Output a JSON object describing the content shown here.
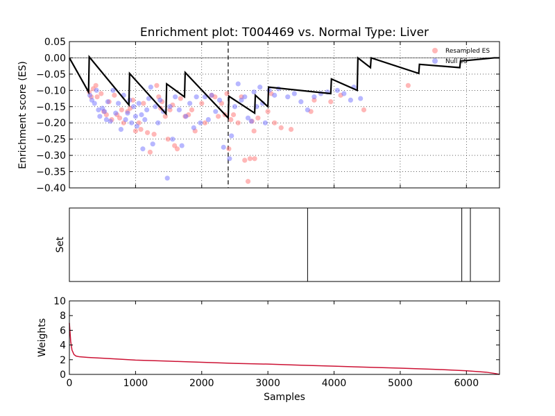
{
  "chart_data": [
    {
      "type": "line",
      "title": "Enrichment plot: T004469 vs. Normal Type: Liver",
      "ylabel": "Enrichment score (ES)",
      "xlabel": "",
      "xlim": [
        0,
        6500
      ],
      "ylim": [
        -0.4,
        0.05
      ],
      "xticks": [
        0,
        1000,
        2000,
        3000,
        4000,
        5000,
        6000
      ],
      "yticks": [
        "0.05",
        "0.00",
        "−0.05",
        "−0.10",
        "−0.15",
        "−0.20",
        "−0.25",
        "−0.30",
        "−0.35",
        "−0.40"
      ],
      "ytick_values": [
        0.05,
        0.0,
        -0.05,
        -0.1,
        -0.15,
        -0.2,
        -0.25,
        -0.3,
        -0.35,
        -0.4
      ],
      "grid": true,
      "legend_position": "top-right",
      "leading_edge_x": 2400,
      "running_es": {
        "color": "#000000",
        "x": [
          0,
          290,
          300,
          900,
          910,
          1460,
          1470,
          1740,
          1750,
          2400,
          2410,
          2800,
          2810,
          3000,
          3010,
          3950,
          3960,
          4350,
          4360,
          4550,
          4560,
          5280,
          5290,
          5900,
          5910,
          6420,
          6500
        ],
        "y": [
          0.0,
          -0.105,
          0.003,
          -0.145,
          -0.048,
          -0.172,
          -0.08,
          -0.12,
          -0.045,
          -0.185,
          -0.118,
          -0.17,
          -0.115,
          -0.15,
          -0.09,
          -0.11,
          -0.065,
          -0.1,
          0.0,
          -0.03,
          0.0,
          -0.048,
          -0.02,
          -0.03,
          -0.01,
          0.0,
          0.0
        ]
      },
      "series": [
        {
          "name": "Resampled ES",
          "color": "#ff7070",
          "x": [
            300,
            330,
            360,
            400,
            420,
            480,
            520,
            560,
            600,
            640,
            680,
            720,
            760,
            790,
            820,
            880,
            920,
            960,
            1000,
            1050,
            1080,
            1120,
            1180,
            1220,
            1280,
            1320,
            1350,
            1380,
            1400,
            1450,
            1490,
            1520,
            1560,
            1590,
            1630,
            1680,
            1750,
            1800,
            1850,
            1900,
            2000,
            2050,
            2150,
            2200,
            2250,
            2300,
            2350,
            2380,
            2410,
            2440,
            2480,
            2550,
            2600,
            2650,
            2700,
            2730,
            2760,
            2790,
            2800,
            2850,
            3000,
            3050,
            3100,
            3200,
            3350,
            3650,
            3700,
            3950,
            4100,
            4450,
            5120
          ],
          "y": [
            -0.105,
            -0.12,
            -0.095,
            -0.085,
            -0.12,
            -0.11,
            -0.165,
            -0.175,
            -0.135,
            -0.19,
            -0.115,
            -0.175,
            -0.185,
            -0.16,
            -0.2,
            -0.165,
            -0.155,
            -0.13,
            -0.225,
            -0.2,
            -0.22,
            -0.14,
            -0.23,
            -0.29,
            -0.235,
            -0.085,
            -0.12,
            -0.155,
            -0.135,
            -0.18,
            -0.25,
            -0.16,
            -0.145,
            -0.27,
            -0.28,
            -0.125,
            -0.18,
            -0.175,
            -0.16,
            -0.225,
            -0.14,
            -0.2,
            -0.115,
            -0.12,
            -0.18,
            -0.14,
            -0.175,
            -0.11,
            -0.28,
            -0.19,
            -0.175,
            -0.2,
            -0.12,
            -0.315,
            -0.38,
            -0.31,
            -0.195,
            -0.225,
            -0.31,
            -0.185,
            -0.165,
            -0.11,
            -0.2,
            -0.215,
            -0.22,
            -0.165,
            -0.13,
            -0.135,
            -0.115,
            -0.16,
            -0.085
          ]
        },
        {
          "name": "Null ES",
          "color": "#7070ff",
          "x": [
            310,
            340,
            380,
            410,
            440,
            460,
            500,
            530,
            560,
            580,
            620,
            660,
            700,
            740,
            780,
            820,
            850,
            880,
            910,
            940,
            970,
            1000,
            1020,
            1050,
            1090,
            1110,
            1140,
            1170,
            1200,
            1230,
            1260,
            1300,
            1340,
            1370,
            1420,
            1480,
            1520,
            1560,
            1600,
            1660,
            1700,
            1760,
            1820,
            1880,
            1920,
            1980,
            2050,
            2100,
            2150,
            2210,
            2270,
            2330,
            2420,
            2450,
            2500,
            2550,
            2600,
            2650,
            2700,
            2750,
            2790,
            2830,
            2880,
            2920,
            2960,
            3020,
            3100,
            3160,
            3300,
            3400,
            3500,
            3600,
            3700,
            3800,
            3900,
            4050,
            4150,
            4250,
            4300,
            4400
          ],
          "y": [
            -0.115,
            -0.13,
            -0.14,
            -0.1,
            -0.16,
            -0.18,
            -0.155,
            -0.165,
            -0.19,
            -0.135,
            -0.195,
            -0.1,
            -0.17,
            -0.14,
            -0.22,
            -0.115,
            -0.19,
            -0.17,
            -0.13,
            -0.2,
            -0.15,
            -0.18,
            -0.21,
            -0.14,
            -0.175,
            -0.28,
            -0.19,
            -0.16,
            -0.125,
            -0.09,
            -0.265,
            -0.15,
            -0.2,
            -0.13,
            -0.165,
            -0.37,
            -0.15,
            -0.25,
            -0.12,
            -0.16,
            -0.27,
            -0.18,
            -0.14,
            -0.215,
            -0.12,
            -0.2,
            -0.12,
            -0.19,
            -0.115,
            -0.165,
            -0.13,
            -0.275,
            -0.31,
            -0.24,
            -0.15,
            -0.08,
            -0.13,
            -0.12,
            -0.185,
            -0.195,
            -0.105,
            -0.15,
            -0.09,
            -0.14,
            -0.2,
            -0.1,
            -0.115,
            -0.095,
            -0.12,
            -0.11,
            -0.135,
            -0.16,
            -0.12,
            -0.11,
            -0.105,
            -0.1,
            -0.11,
            -0.13,
            -0.09,
            -0.125
          ]
        }
      ]
    },
    {
      "type": "line",
      "title": "",
      "ylabel": "Set",
      "xlabel": "",
      "xlim": [
        0,
        6500
      ],
      "set_positions": [
        3600,
        5930,
        6060
      ]
    },
    {
      "type": "line",
      "title": "",
      "ylabel": "Weights",
      "xlabel": "Samples",
      "xlim": [
        0,
        6500
      ],
      "ylim": [
        0,
        10
      ],
      "xticks": [
        0,
        1000,
        2000,
        3000,
        4000,
        5000,
        6000
      ],
      "yticks": [
        "10",
        "8",
        "6",
        "4",
        "2",
        "0"
      ],
      "ytick_values": [
        10,
        8,
        6,
        4,
        2,
        0
      ],
      "series": [
        {
          "name": "",
          "color": "#cc1133",
          "x": [
            0,
            20,
            40,
            70,
            100,
            150,
            300,
            500,
            800,
            1000,
            1500,
            2000,
            2500,
            3000,
            3500,
            4000,
            4500,
            5000,
            5500,
            6000,
            6300,
            6450,
            6500
          ],
          "y": [
            7.0,
            4.5,
            3.3,
            2.7,
            2.5,
            2.4,
            2.3,
            2.2,
            2.05,
            1.95,
            1.8,
            1.65,
            1.5,
            1.4,
            1.25,
            1.12,
            0.98,
            0.85,
            0.7,
            0.5,
            0.3,
            0.1,
            0.0
          ]
        }
      ]
    }
  ]
}
